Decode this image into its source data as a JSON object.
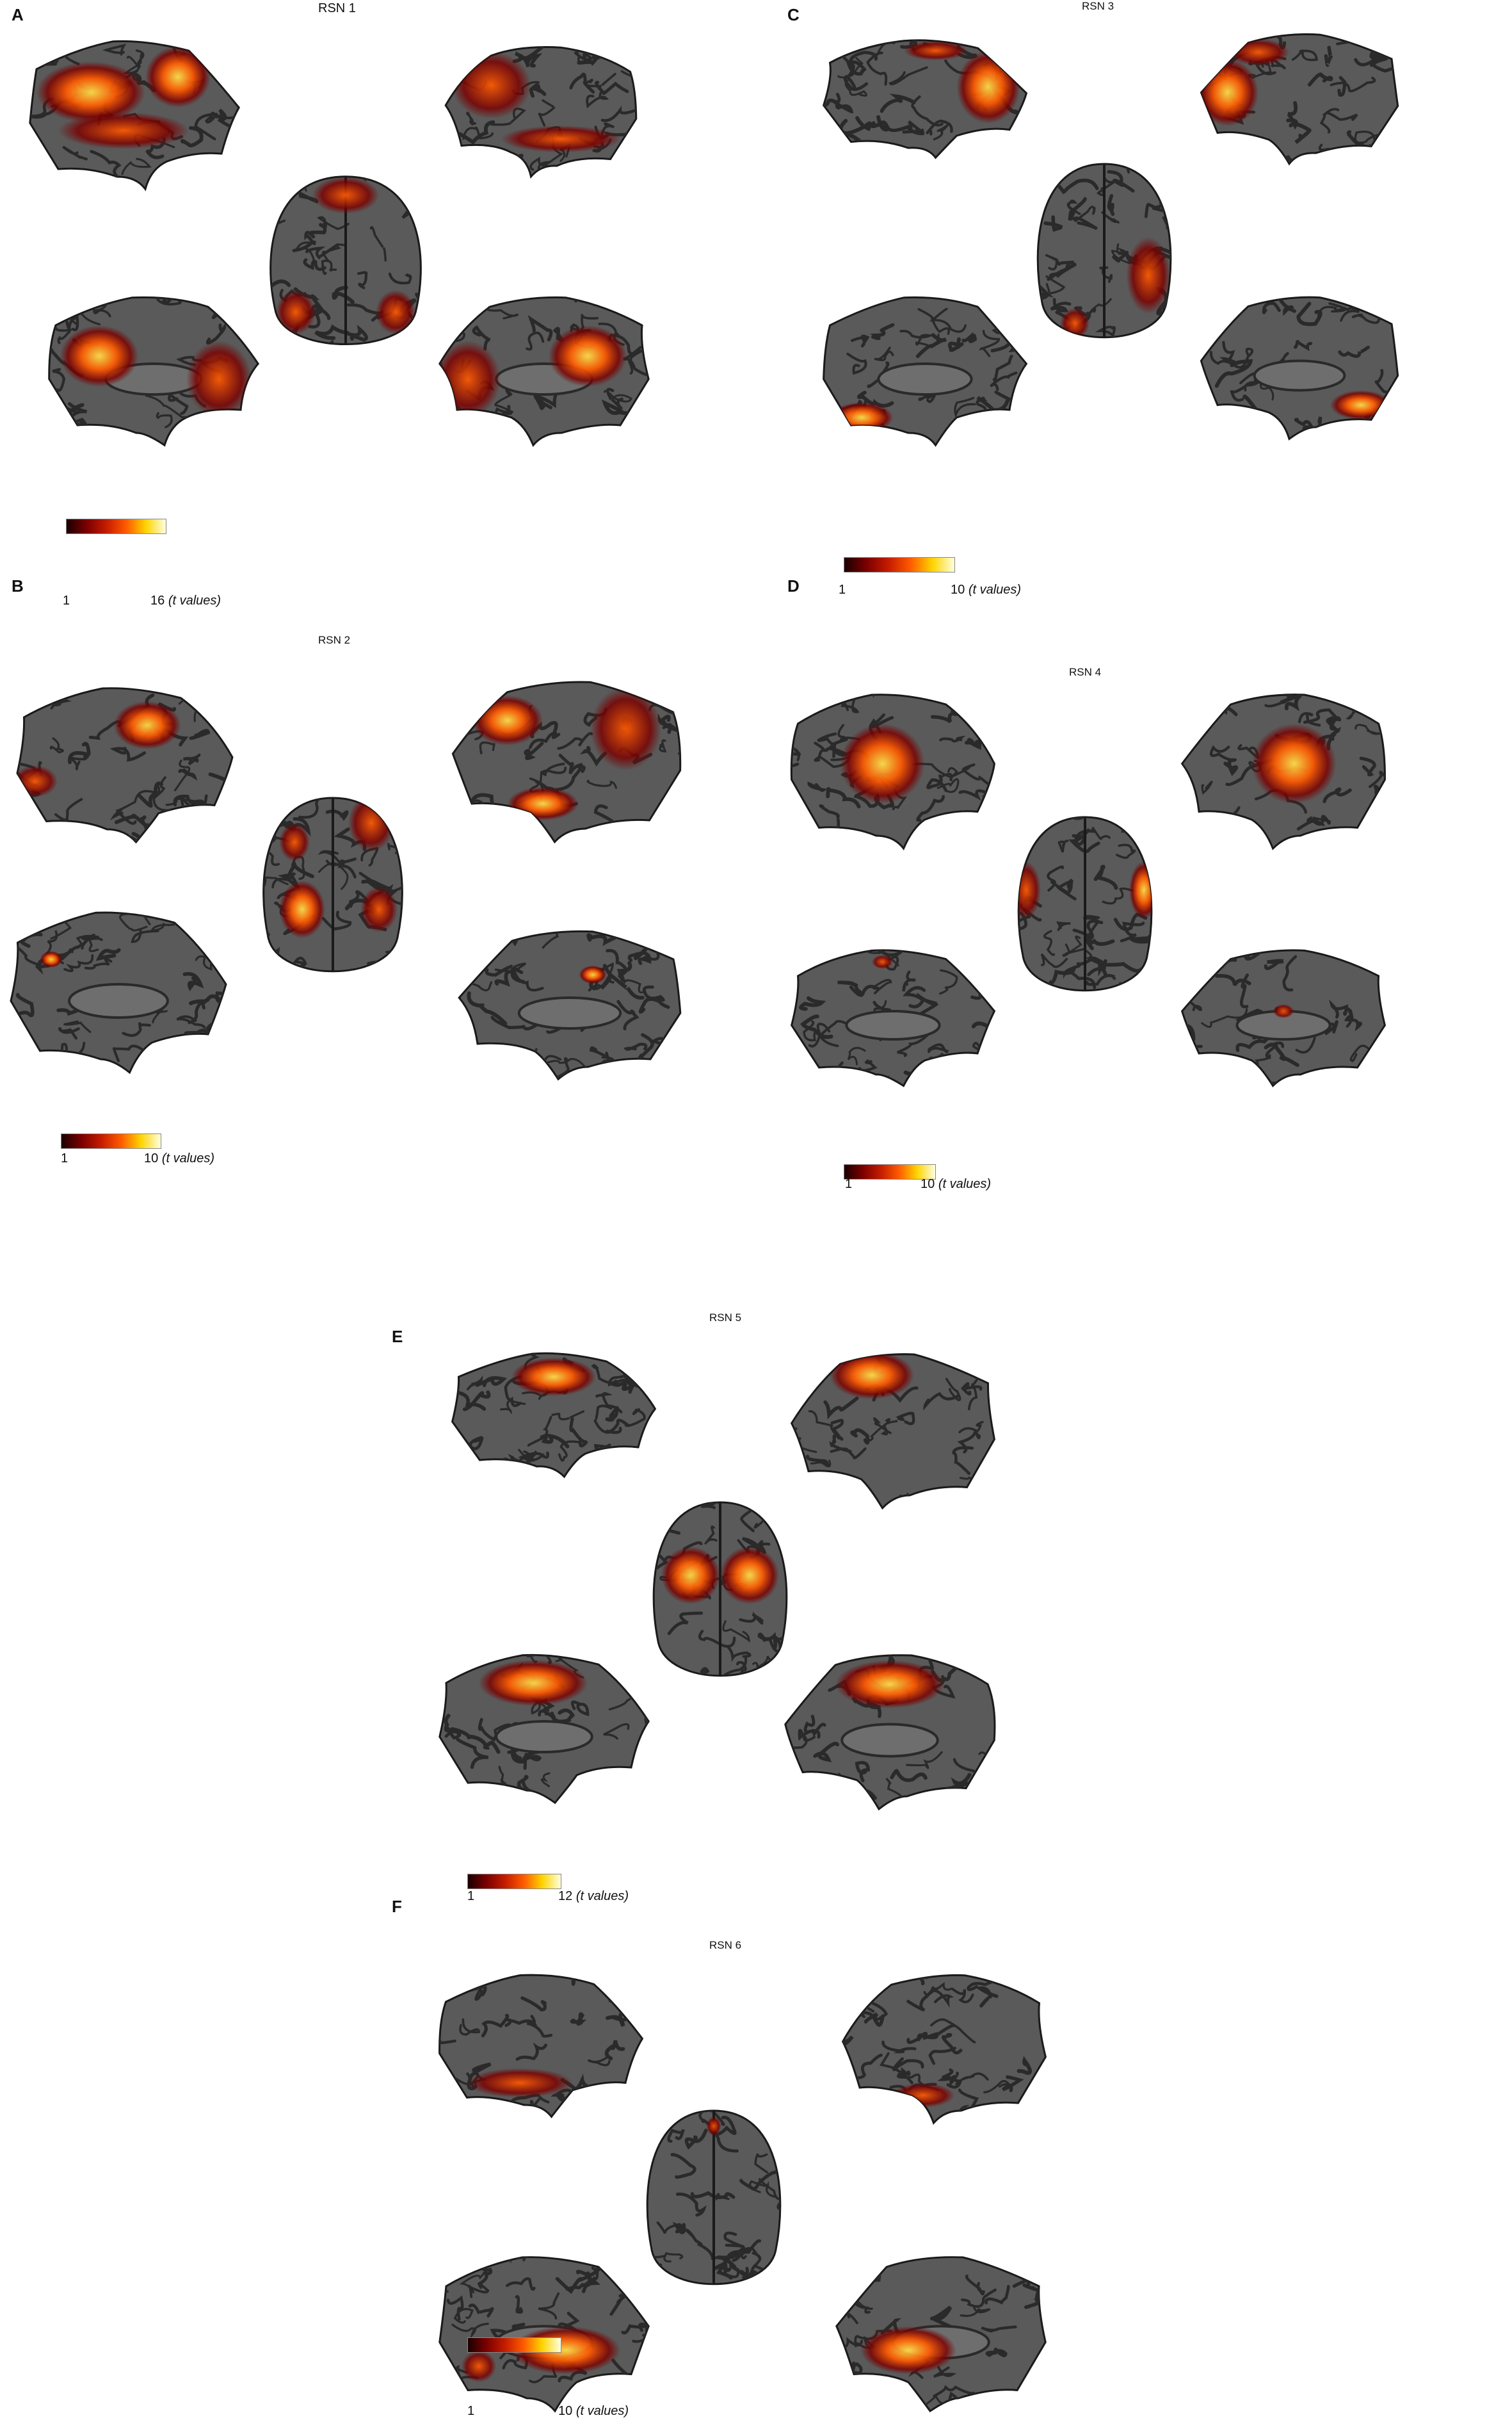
{
  "panels": [
    {
      "letter": "A",
      "title": "RSN 1",
      "scale_min": "1",
      "scale_max": "16",
      "scale_unit": "(t values)"
    },
    {
      "letter": "B",
      "title": "RSN 2",
      "scale_min": "1",
      "scale_max": "10",
      "scale_unit": "(t values)"
    },
    {
      "letter": "C",
      "title": "RSN 3",
      "scale_min": "1",
      "scale_max": "10",
      "scale_unit": "(t values)"
    },
    {
      "letter": "D",
      "title": "RSN 4",
      "scale_min": "1",
      "scale_max": "10",
      "scale_unit": "(t values)"
    },
    {
      "letter": "E",
      "title": "RSN 5",
      "scale_min": "1",
      "scale_max": "12",
      "scale_unit": "(t values)"
    },
    {
      "letter": "F",
      "title": "RSN 6",
      "scale_min": "1",
      "scale_max": "10",
      "scale_unit": "(t values)"
    }
  ],
  "colors": {
    "cortex": "#5a5a5a",
    "sulci": "#2a2a2a",
    "low": "#7a0000",
    "mid": "#ff5a00",
    "high": "#ffe14a"
  }
}
